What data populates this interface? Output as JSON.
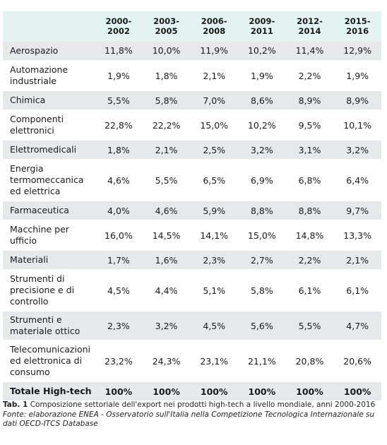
{
  "table": {
    "columns": [
      "",
      "2000-2002",
      "2003-2005",
      "2006-2008",
      "2009-2011",
      "2012-2014",
      "2015-2016"
    ],
    "rows": [
      {
        "label": "Aerospazio",
        "values": [
          "11,8%",
          "10,0%",
          "11,9%",
          "10,2%",
          "11,4%",
          "12,9%"
        ]
      },
      {
        "label": "Automazione industriale",
        "values": [
          "1,9%",
          "1,8%",
          "2,1%",
          "1,9%",
          "2,2%",
          "1,9%"
        ]
      },
      {
        "label": "Chimica",
        "values": [
          "5,5%",
          "5,8%",
          "7,0%",
          "8,6%",
          "8,9%",
          "8,9%"
        ]
      },
      {
        "label": "Componenti elettronici",
        "values": [
          "22,8%",
          "22,2%",
          "15,0%",
          "10,2%",
          "9,5%",
          "10,1%"
        ]
      },
      {
        "label": "Elettromedicali",
        "values": [
          "1,8%",
          "2,1%",
          "2,5%",
          "3,2%",
          "3,1%",
          "3,2%"
        ]
      },
      {
        "label": "Energia termomeccanica ed elettrica",
        "values": [
          "4,6%",
          "5,5%",
          "6,5%",
          "6,9%",
          "6,8%",
          "6,4%"
        ]
      },
      {
        "label": "Farmaceutica",
        "values": [
          "4,0%",
          "4,6%",
          "5,9%",
          "8,8%",
          "8,8%",
          "9,7%"
        ]
      },
      {
        "label": "Macchine per ufficio",
        "values": [
          "16,0%",
          "14,5%",
          "14,1%",
          "15,0%",
          "14,8%",
          "13,3%"
        ]
      },
      {
        "label": "Materiali",
        "values": [
          "1,7%",
          "1,6%",
          "2,3%",
          "2,7%",
          "2,2%",
          "2,1%"
        ]
      },
      {
        "label": "Strumenti di precisione e di controllo",
        "values": [
          "4,5%",
          "4,4%",
          "5,1%",
          "5,8%",
          "6,1%",
          "6,1%"
        ]
      },
      {
        "label": "Strumenti e materiale ottico",
        "values": [
          "2,3%",
          "3,2%",
          "4,5%",
          "5,6%",
          "5,5%",
          "4,7%"
        ]
      },
      {
        "label": "Telecomunicazioni ed elettronica di consumo",
        "values": [
          "23,2%",
          "24,3%",
          "23,1%",
          "21,1%",
          "20,8%",
          "20,6%"
        ]
      },
      {
        "label": "Totale High-tech",
        "values": [
          "100%",
          "100%",
          "100%",
          "100%",
          "100%",
          "100%"
        ]
      }
    ]
  },
  "caption": {
    "tab_number": "Tab. 1",
    "text": "Composizione settoriale dell'export nei prodotti high-tech a livello mondiale, anni 2000-2016",
    "source": "Fonte: elaborazione ENEA - Osservatorio sull'Italia nella Competizione Tecnologica Internazionale su dati OECD-ITCS Database"
  },
  "colors": {
    "header_bg": "#e2f3f2",
    "row_shade": "#e7e8ea",
    "row_plain": "#ffffff"
  }
}
